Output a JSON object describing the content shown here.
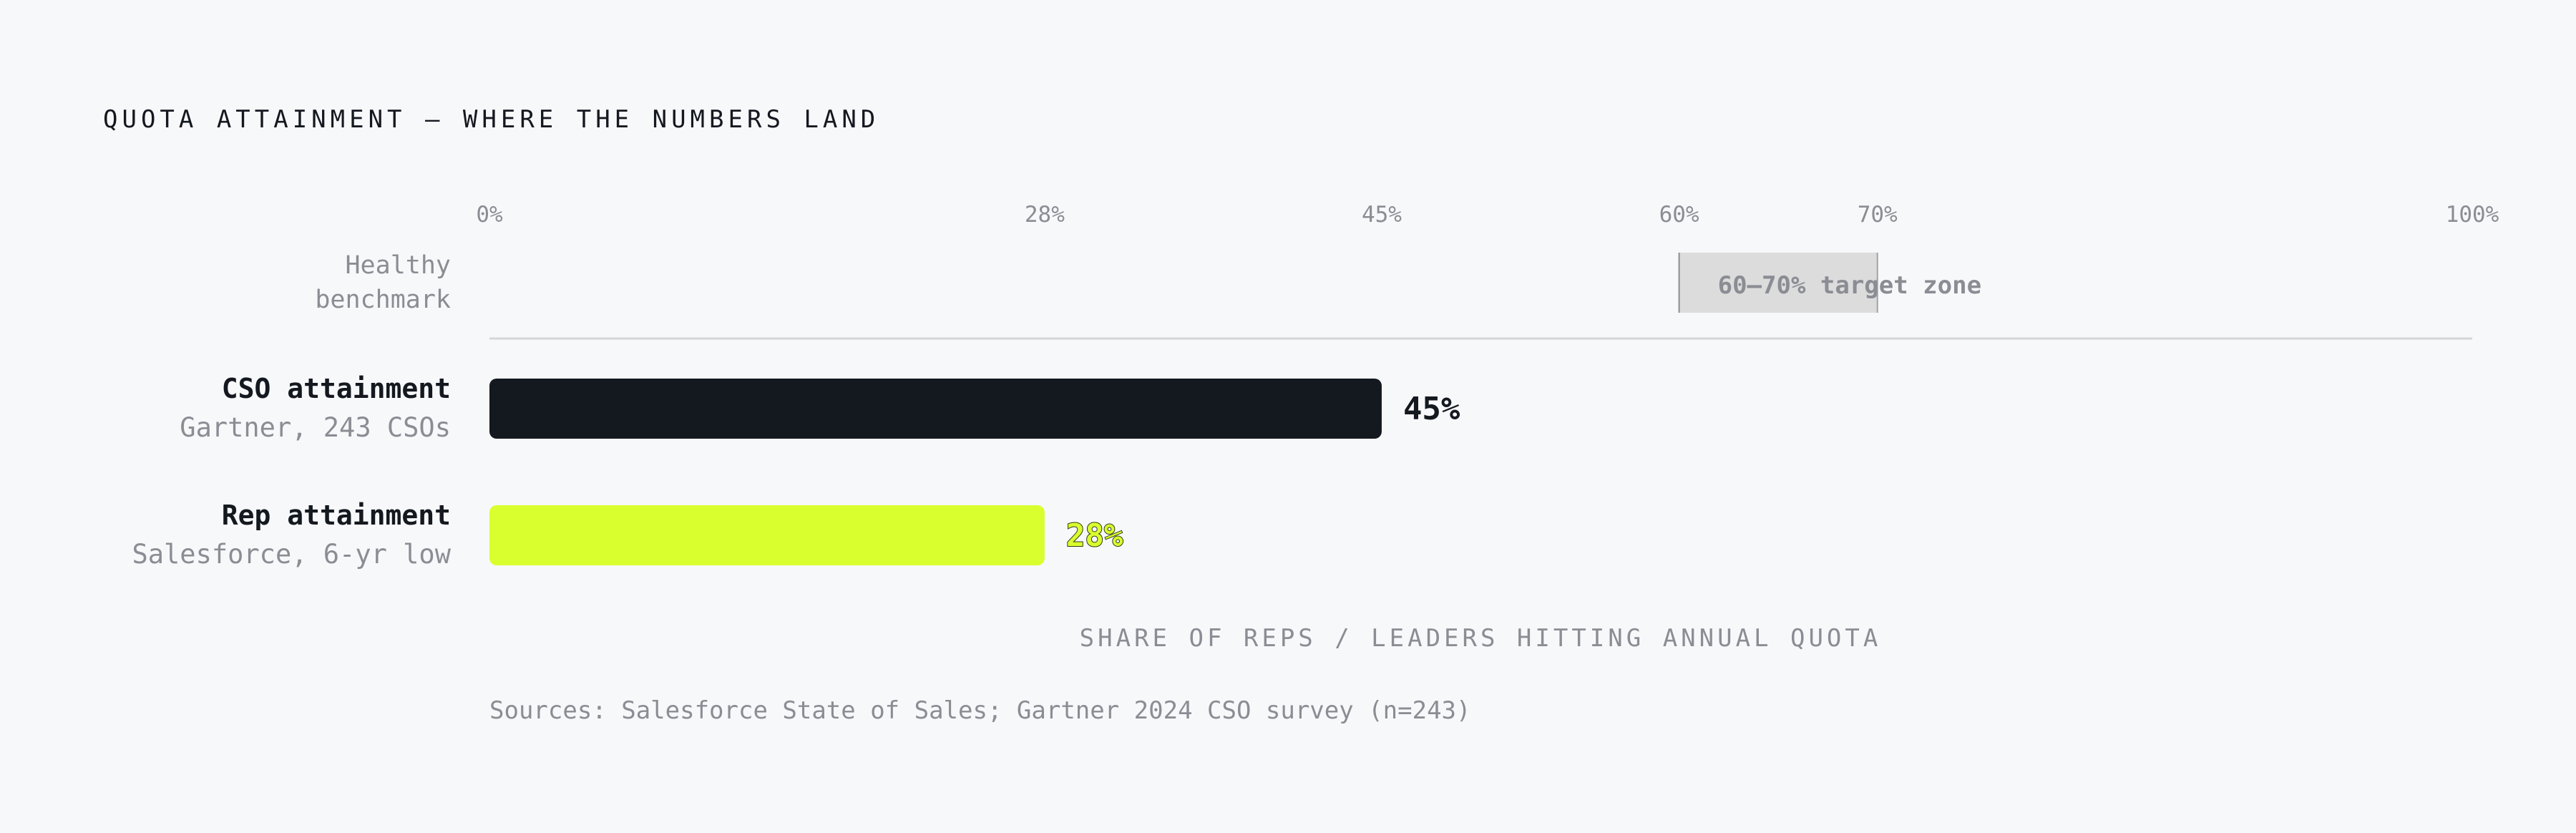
{
  "chart_data": {
    "type": "bar",
    "orientation": "horizontal",
    "title": "QUOTA ATTAINMENT — WHERE THE NUMBERS LAND",
    "xlabel": "SHARE OF REPS / LEADERS HITTING ANNUAL QUOTA",
    "xlim": [
      0,
      100
    ],
    "ticks": [
      {
        "value": 0,
        "label": "0%"
      },
      {
        "value": 28,
        "label": "28%"
      },
      {
        "value": 45,
        "label": "45%"
      },
      {
        "value": 60,
        "label": "60%"
      },
      {
        "value": 70,
        "label": "70%"
      },
      {
        "value": 100,
        "label": "100%"
      }
    ],
    "benchmark": {
      "label_line1": "Healthy",
      "label_line2": "benchmark",
      "range": [
        60,
        70
      ],
      "zone_label": "60–70% target zone",
      "color": "#dcdcdc"
    },
    "bars": [
      {
        "label": "CSO attainment",
        "sublabel": "Gartner, 243 CSOs",
        "value": 45,
        "value_label": "45%",
        "color": "#141920"
      },
      {
        "label": "Rep attainment",
        "sublabel": "Salesforce, 6-yr low",
        "value": 28,
        "value_label": "28%",
        "color": "#d9ff2e"
      }
    ],
    "source": "Sources: Salesforce State of Sales; Gartner 2024 CSO survey (n=243)",
    "grid": false,
    "legend": "none"
  }
}
